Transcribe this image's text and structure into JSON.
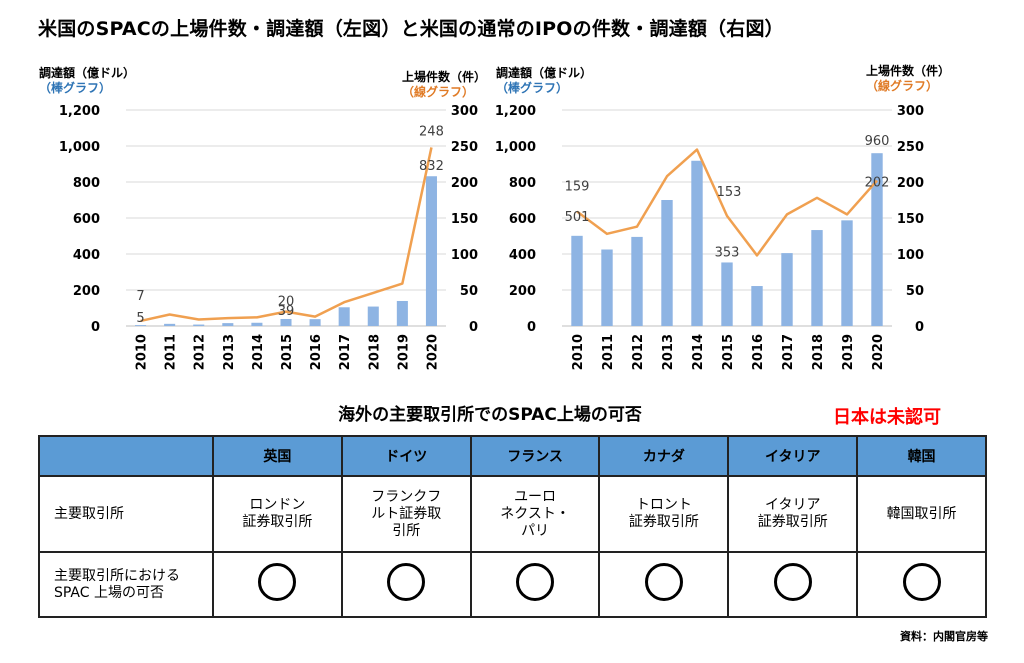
{
  "title": "米国のSPACの上場件数・調達額（左図）と米国の通常のIPOの件数・調達額（右図）",
  "chart_data": [
    {
      "type": "bar+line",
      "ylabel_left": "調達額（億ドル）",
      "ylabel_left_sub": "（棒グラフ）",
      "ylabel_right": "上場件数（件）",
      "ylabel_right_sub": "（線グラフ）",
      "categories": [
        "2010",
        "2011",
        "2012",
        "2013",
        "2014",
        "2015",
        "2016",
        "2017",
        "2018",
        "2019",
        "2020"
      ],
      "bar_series": {
        "values": [
          5,
          12,
          8,
          16,
          18,
          39,
          38,
          104,
          108,
          139,
          832
        ]
      },
      "line_series": {
        "values": [
          7,
          16,
          9,
          11,
          12,
          20,
          13,
          33,
          46,
          59,
          248
        ]
      },
      "ylim_left": [
        0,
        1200
      ],
      "yticks_left": [
        "0",
        "200",
        "400",
        "600",
        "800",
        "1,000",
        "1,200"
      ],
      "ylim_right": [
        0,
        300
      ],
      "yticks_right": [
        "0",
        "50",
        "100",
        "150",
        "200",
        "250",
        "300"
      ],
      "annotations": [
        {
          "text": "7",
          "series": "line",
          "index": 0
        },
        {
          "text": "5",
          "series": "bar",
          "index": 0
        },
        {
          "text": "20",
          "series": "line",
          "index": 5
        },
        {
          "text": "39",
          "series": "bar",
          "index": 5
        },
        {
          "text": "248",
          "series": "line",
          "index": 10
        },
        {
          "text": "832",
          "series": "bar",
          "index": 10
        }
      ],
      "grid": true
    },
    {
      "type": "bar+line",
      "ylabel_left": "調達額（億ドル）",
      "ylabel_left_sub": "（棒グラフ）",
      "ylabel_right": "上場件数（件）",
      "ylabel_right_sub": "（線グラフ）",
      "categories": [
        "2010",
        "2011",
        "2012",
        "2013",
        "2014",
        "2015",
        "2016",
        "2017",
        "2018",
        "2019",
        "2020"
      ],
      "bar_series": {
        "values": [
          501,
          425,
          495,
          700,
          918,
          353,
          222,
          405,
          533,
          587,
          960
        ]
      },
      "line_series": {
        "values": [
          159,
          128,
          138,
          208,
          245,
          153,
          98,
          155,
          178,
          155,
          202
        ]
      },
      "ylim_left": [
        0,
        1200
      ],
      "yticks_left": [
        "0",
        "200",
        "400",
        "600",
        "800",
        "1,000",
        "1,200"
      ],
      "ylim_right": [
        0,
        300
      ],
      "yticks_right": [
        "0",
        "50",
        "100",
        "150",
        "200",
        "250",
        "300"
      ],
      "annotations": [
        {
          "text": "159",
          "series": "line",
          "index": 0
        },
        {
          "text": "501",
          "series": "bar",
          "index": 0
        },
        {
          "text": "153",
          "series": "line",
          "index": 5
        },
        {
          "text": "353",
          "series": "bar",
          "index": 5
        },
        {
          "text": "960",
          "series": "bar",
          "index": 10
        },
        {
          "text": "202",
          "series": "line",
          "index": 10
        }
      ],
      "grid": true
    }
  ],
  "colors": {
    "bar": "#8eb4e3",
    "line": "#f0a050",
    "header_fill": "#5b9bd5",
    "note_red": "#ff0000"
  },
  "table": {
    "title": "海外の主要取引所でのSPAC上場の可否",
    "note": "日本は未認可",
    "columns": [
      "英国",
      "ドイツ",
      "フランス",
      "カナダ",
      "イタリア",
      "韓国"
    ],
    "row1_label": "主要取引所",
    "row1_values": [
      "ロンドン\n証券取引所",
      "フランクフ\nルト証券取\n引所",
      "ユーロ\nネクスト・\nパリ",
      "トロント\n証券取引所",
      "イタリア\n証券取引所",
      "韓国取引所"
    ],
    "row2_label": "主要取引所における SPAC 上場の可否",
    "row2_values": [
      "○",
      "○",
      "○",
      "○",
      "○",
      "○"
    ]
  },
  "source": "資料：内閣官房等"
}
